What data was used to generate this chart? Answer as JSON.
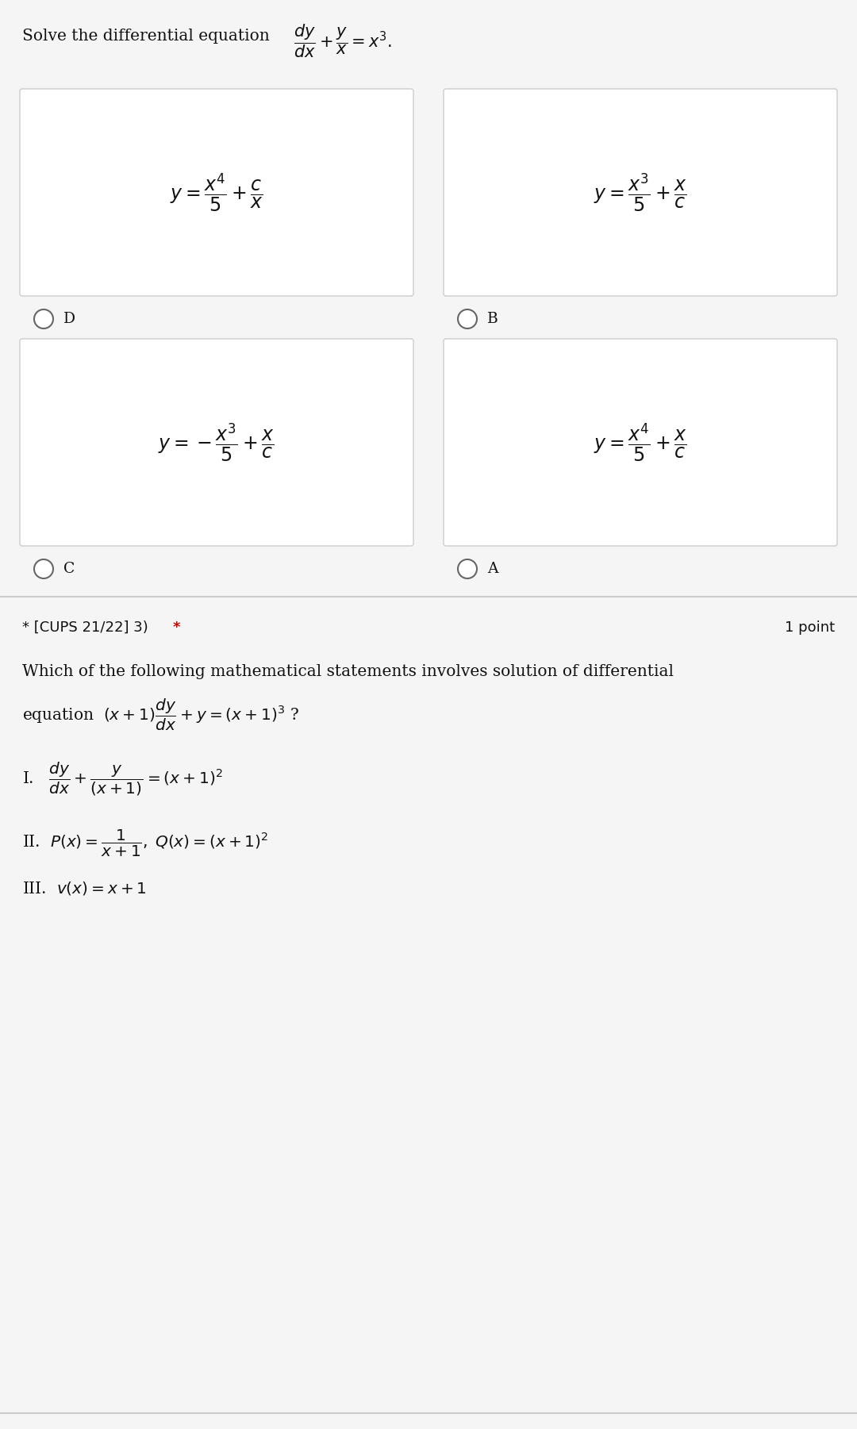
{
  "bg_color": "#f5f5f5",
  "white": "#ffffff",
  "black": "#111111",
  "red": "#cc0000",
  "gray_border": "#cccccc",
  "circle_ec": "#666666",
  "question1_prefix": "Solve the differential equation",
  "question1_eq": "$\\dfrac{dy}{dx} + \\dfrac{y}{x} = x^3.$",
  "option_D_eq": "$y = \\dfrac{x^4}{5} + \\dfrac{c}{x}$",
  "option_B_eq": "$y = \\dfrac{x^3}{5} + \\dfrac{x}{c}$",
  "option_C_eq": "$y = -\\dfrac{x^3}{5} + \\dfrac{x}{c}$",
  "option_A_eq": "$y = \\dfrac{x^4}{5} + \\dfrac{x}{c}$",
  "label_D": "D",
  "label_B": "B",
  "label_C": "C",
  "label_A": "A",
  "section2_label_black": "* [CUPS 21/22] 3) ",
  "section2_label_red": "*",
  "section2_points": "1 point",
  "section2_q1": "Which of the following mathematical statements involves solution of differential",
  "section2_q2": "equation  $(x+1)\\dfrac{dy}{dx} + y = (x+1)^3$ ?",
  "stmt_I": "I.   $\\dfrac{dy}{dx} + \\dfrac{y}{(x+1)} = (x+1)^2$",
  "stmt_II": "II.  $P(x) = \\dfrac{1}{x+1},\\; Q(x) = (x+1)^2$",
  "stmt_III": "III.  $v(x) = x+1$",
  "fig_width": 10.8,
  "fig_height": 18.01,
  "dpi": 100
}
